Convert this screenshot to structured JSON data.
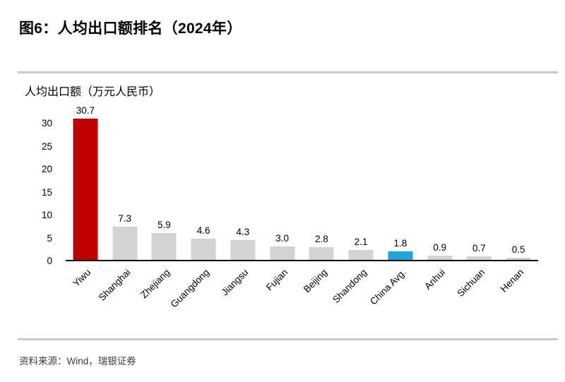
{
  "figure": {
    "title": "图6：人均出口额排名（2024年）"
  },
  "chart_data": {
    "type": "bar",
    "title": "图6：人均出口额排名（2024年）",
    "ylabel": "人均出口额（万元人民币）",
    "xlabel": "",
    "categories": [
      "Yiwu",
      "Shanghai",
      "Zhejiang",
      "Guangdong",
      "Jiangsu",
      "Fujian",
      "Beijing",
      "Shandong",
      "China Avg.",
      "Anhui",
      "Sichuan",
      "Henan"
    ],
    "values": [
      30.7,
      7.3,
      5.9,
      4.6,
      4.3,
      3.0,
      2.8,
      2.1,
      1.8,
      0.9,
      0.7,
      0.5
    ],
    "value_labels": [
      "30.7",
      "7.3",
      "5.9",
      "4.6",
      "4.3",
      "3.0",
      "2.8",
      "2.1",
      "1.8",
      "0.9",
      "0.7",
      "0.5"
    ],
    "bar_colors": [
      "#C00000",
      "#D3D3D3",
      "#D3D3D3",
      "#D3D3D3",
      "#D3D3D3",
      "#D3D3D3",
      "#D3D3D3",
      "#D3D3D3",
      "#1AA7E1",
      "#D3D3D3",
      "#D3D3D3",
      "#D3D3D3"
    ],
    "yticks": [
      0,
      5,
      10,
      15,
      20,
      25,
      30
    ],
    "ylim": [
      0,
      30.75
    ],
    "grid": false,
    "legend_position": "none",
    "data_labels": true,
    "x_label_rotation_deg": 45
  },
  "colors": {
    "highlight_red": "#C00000",
    "highlight_blue": "#1AA7E1",
    "bar_gray": "#D3D3D3",
    "divider_gray": "#C9C9C9",
    "axis_black": "#000000"
  },
  "footer": {
    "source": "资料来源：Wind，瑞银证券"
  }
}
